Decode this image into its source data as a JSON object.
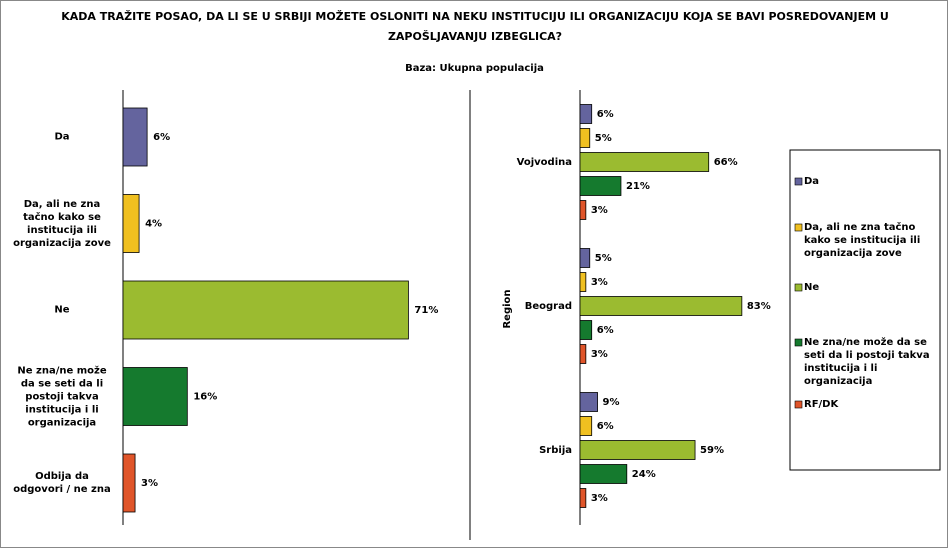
{
  "title": "KADA TRAŽITE POSAO, DA LI SE U SRBIJI MOŽETE OSLONITI NA NEKU INSTITUCIJU ILI ORGANIZACIJU KOJA SE BAVI POSREDOVANJEM U ZAPOŠLJAVANJU IZBEGLICA?",
  "subtitle": "Baza: Ukupna populacija",
  "chart_data": [
    {
      "type": "hbar",
      "categories": [
        "Da",
        "Da, ali ne zna tačno kako se institucija ili organizacija zove",
        "Ne",
        "Ne zna/ne može da se seti da li postoji takva institucija i li organizacija",
        "Odbija da odgovori / ne zna"
      ],
      "values": [
        6,
        4,
        71,
        16,
        3
      ],
      "value_labels": [
        "6%",
        "4%",
        "71%",
        "16%",
        "3%"
      ],
      "colors": [
        "#64649e",
        "#f0c020",
        "#9bbb30",
        "#157a2e",
        "#e0552a"
      ]
    },
    {
      "type": "grouped-hbar",
      "ylabel": "Region",
      "categories": [
        "Vojvodina",
        "Beograd",
        "Srbija"
      ],
      "legend": "right",
      "series": [
        {
          "name": "Da",
          "color": "#64649e",
          "values": [
            6,
            5,
            9
          ],
          "value_labels": [
            "6%",
            "5%",
            "9%"
          ]
        },
        {
          "name": "Da, ali ne zna tačno kako se institucija ili organizacija zove",
          "color": "#f0c020",
          "values": [
            5,
            3,
            6
          ],
          "value_labels": [
            "5%",
            "3%",
            "6%"
          ]
        },
        {
          "name": "Ne",
          "color": "#9bbb30",
          "values": [
            66,
            83,
            59
          ],
          "value_labels": [
            "66%",
            "83%",
            "59%"
          ]
        },
        {
          "name": "Ne zna/ne može da se seti da li postoji takva institucija i li organizacija",
          "color": "#157a2e",
          "values": [
            21,
            6,
            24
          ],
          "value_labels": [
            "21%",
            "6%",
            "24%"
          ]
        },
        {
          "name": "RF/DK",
          "color": "#e0552a",
          "values": [
            3,
            3,
            3
          ],
          "value_labels": [
            "3%",
            "3%",
            "3%"
          ]
        }
      ]
    }
  ]
}
